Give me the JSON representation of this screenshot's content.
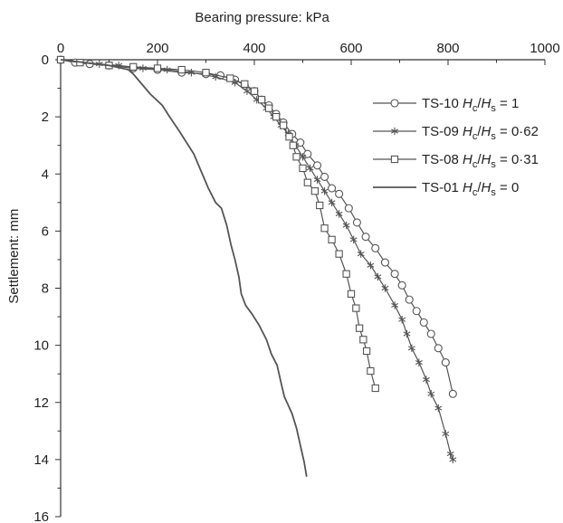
{
  "chart_data": {
    "type": "line",
    "title": "",
    "xlabel": "Bearing pressure: kPa",
    "ylabel": "Settlement: mm",
    "x_axis_position": "top",
    "y_inverted": true,
    "xlim": [
      0,
      1000
    ],
    "ylim": [
      0,
      16
    ],
    "x_ticks": [
      0,
      200,
      400,
      600,
      800,
      1000
    ],
    "y_ticks": [
      0,
      2,
      4,
      6,
      8,
      10,
      12,
      14,
      16
    ],
    "grid": false,
    "legend_position": "top-right",
    "colors": {
      "series": "#555555",
      "axis": "#333333",
      "text": "#222222"
    },
    "series": [
      {
        "label_prefix": "TS-10 ",
        "ratio_value": "1",
        "marker": "circle",
        "points": [
          [
            0,
            0
          ],
          [
            30,
            0.1
          ],
          [
            60,
            0.15
          ],
          [
            100,
            0.2
          ],
          [
            150,
            0.3
          ],
          [
            200,
            0.35
          ],
          [
            250,
            0.45
          ],
          [
            300,
            0.5
          ],
          [
            330,
            0.55
          ],
          [
            360,
            0.7
          ],
          [
            380,
            0.9
          ],
          [
            400,
            1.1
          ],
          [
            415,
            1.4
          ],
          [
            430,
            1.6
          ],
          [
            445,
            1.9
          ],
          [
            460,
            2.2
          ],
          [
            478,
            2.6
          ],
          [
            495,
            2.9
          ],
          [
            510,
            3.3
          ],
          [
            530,
            3.7
          ],
          [
            545,
            4.1
          ],
          [
            560,
            4.5
          ],
          [
            575,
            4.7
          ],
          [
            595,
            5.2
          ],
          [
            612,
            5.7
          ],
          [
            630,
            6.2
          ],
          [
            650,
            6.6
          ],
          [
            670,
            7.1
          ],
          [
            690,
            7.5
          ],
          [
            705,
            7.9
          ],
          [
            720,
            8.4
          ],
          [
            735,
            8.8
          ],
          [
            750,
            9.2
          ],
          [
            765,
            9.6
          ],
          [
            780,
            10.1
          ],
          [
            795,
            10.6
          ],
          [
            810,
            11.7
          ]
        ]
      },
      {
        "label_prefix": "TS-09 ",
        "ratio_value": "0·62",
        "marker": "star",
        "points": [
          [
            0,
            0
          ],
          [
            40,
            0.1
          ],
          [
            80,
            0.15
          ],
          [
            120,
            0.2
          ],
          [
            170,
            0.3
          ],
          [
            220,
            0.35
          ],
          [
            270,
            0.45
          ],
          [
            320,
            0.6
          ],
          [
            360,
            0.8
          ],
          [
            385,
            1.1
          ],
          [
            405,
            1.4
          ],
          [
            425,
            1.7
          ],
          [
            440,
            2.0
          ],
          [
            455,
            2.3
          ],
          [
            470,
            2.6
          ],
          [
            485,
            3.0
          ],
          [
            500,
            3.4
          ],
          [
            515,
            3.8
          ],
          [
            530,
            4.2
          ],
          [
            545,
            4.6
          ],
          [
            560,
            5.0
          ],
          [
            575,
            5.4
          ],
          [
            590,
            5.8
          ],
          [
            605,
            6.3
          ],
          [
            620,
            6.8
          ],
          [
            640,
            7.2
          ],
          [
            655,
            7.6
          ],
          [
            670,
            8.0
          ],
          [
            690,
            8.6
          ],
          [
            705,
            9.1
          ],
          [
            715,
            9.6
          ],
          [
            725,
            10.1
          ],
          [
            740,
            10.6
          ],
          [
            755,
            11.2
          ],
          [
            765,
            11.7
          ],
          [
            780,
            12.2
          ],
          [
            795,
            13.1
          ],
          [
            805,
            13.8
          ],
          [
            810,
            14.0
          ]
        ]
      },
      {
        "label_prefix": "TS-08 ",
        "ratio_value": "0·31",
        "marker": "square",
        "points": [
          [
            0,
            0
          ],
          [
            40,
            0.1
          ],
          [
            100,
            0.2
          ],
          [
            150,
            0.25
          ],
          [
            200,
            0.3
          ],
          [
            250,
            0.35
          ],
          [
            300,
            0.45
          ],
          [
            350,
            0.65
          ],
          [
            380,
            0.85
          ],
          [
            400,
            1.1
          ],
          [
            415,
            1.4
          ],
          [
            430,
            1.7
          ],
          [
            445,
            2.0
          ],
          [
            460,
            2.3
          ],
          [
            472,
            2.7
          ],
          [
            480,
            3.0
          ],
          [
            487,
            3.4
          ],
          [
            500,
            3.8
          ],
          [
            510,
            4.3
          ],
          [
            525,
            4.6
          ],
          [
            535,
            5.1
          ],
          [
            545,
            5.9
          ],
          [
            560,
            6.3
          ],
          [
            575,
            6.8
          ],
          [
            590,
            7.5
          ],
          [
            600,
            8.2
          ],
          [
            610,
            8.7
          ],
          [
            617,
            9.4
          ],
          [
            625,
            9.8
          ],
          [
            632,
            10.2
          ],
          [
            640,
            10.9
          ],
          [
            650,
            11.5
          ]
        ]
      },
      {
        "label_prefix": "TS-01 ",
        "ratio_value": "0",
        "marker": "none",
        "points": [
          [
            0,
            0
          ],
          [
            50,
            0.1
          ],
          [
            100,
            0.2
          ],
          [
            140,
            0.35
          ],
          [
            150,
            0.5
          ],
          [
            165,
            0.8
          ],
          [
            185,
            1.2
          ],
          [
            210,
            1.6
          ],
          [
            225,
            2.0
          ],
          [
            245,
            2.5
          ],
          [
            260,
            2.9
          ],
          [
            275,
            3.3
          ],
          [
            290,
            3.9
          ],
          [
            305,
            4.5
          ],
          [
            320,
            5.0
          ],
          [
            332,
            5.2
          ],
          [
            343,
            5.8
          ],
          [
            352,
            6.5
          ],
          [
            360,
            7.0
          ],
          [
            368,
            7.6
          ],
          [
            373,
            8.2
          ],
          [
            382,
            8.6
          ],
          [
            395,
            8.9
          ],
          [
            410,
            9.3
          ],
          [
            425,
            9.8
          ],
          [
            435,
            10.3
          ],
          [
            447,
            10.7
          ],
          [
            455,
            11.3
          ],
          [
            462,
            11.8
          ],
          [
            470,
            12.1
          ],
          [
            478,
            12.4
          ],
          [
            487,
            12.9
          ],
          [
            495,
            13.5
          ],
          [
            503,
            14.1
          ],
          [
            508,
            14.6
          ]
        ]
      }
    ]
  }
}
